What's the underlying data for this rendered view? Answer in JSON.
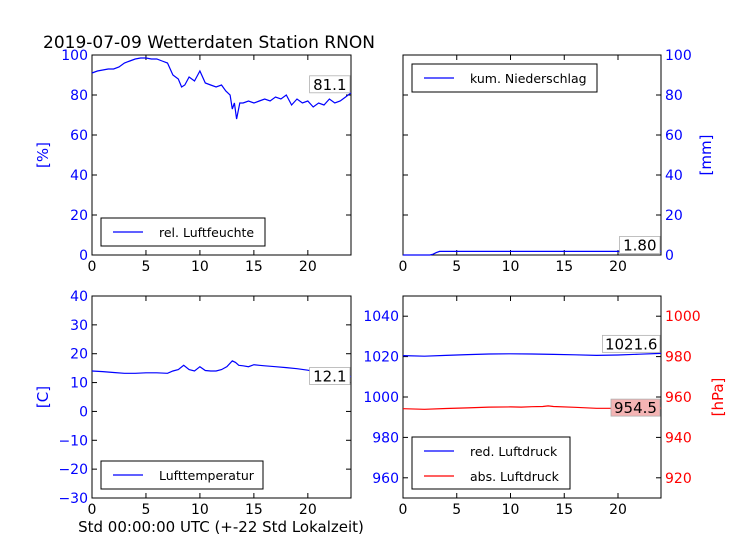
{
  "title": "2019-07-09 Wetterdaten Station RNON",
  "xlabel": "Std 00:00:00 UTC (+-22 Std Lokalzeit)",
  "colors": {
    "blue": "#0000ff",
    "red": "#ff0000",
    "pressure_box": "#f4b4b4"
  },
  "chart_data": [
    {
      "type": "line",
      "panel": "top-left",
      "ylabel": "[%]",
      "ylim": [
        0,
        100
      ],
      "xlim": [
        0,
        24
      ],
      "xticks": [
        0,
        5,
        10,
        15,
        20
      ],
      "yticks": [
        0,
        20,
        40,
        60,
        80,
        100
      ],
      "legend_position": "lower-left",
      "last_value_label": "81.1",
      "series": [
        {
          "name": "rel. Luftfeuchte",
          "color": "#0000ff",
          "x": [
            0,
            0.5,
            1,
            1.5,
            2,
            2.5,
            3,
            3.5,
            4,
            4.5,
            5,
            5.5,
            6,
            6.5,
            7,
            7.5,
            8,
            8.3,
            8.6,
            9,
            9.5,
            10,
            10.5,
            11,
            11.5,
            12,
            12.4,
            12.8,
            13.0,
            13.2,
            13.4,
            13.7,
            14,
            14.5,
            15,
            15.5,
            16,
            16.5,
            17,
            17.5,
            18,
            18.5,
            19,
            19.5,
            20,
            20.5,
            21,
            21.5,
            22,
            22.5,
            23,
            23.5,
            24
          ],
          "y": [
            91,
            92,
            92.5,
            93,
            93,
            94,
            96,
            97,
            98,
            98.5,
            98.5,
            98,
            98,
            97,
            96,
            90,
            88,
            84,
            85,
            89,
            87,
            92,
            86,
            85,
            84,
            85,
            82,
            80,
            73,
            76,
            68,
            76,
            76,
            77,
            76,
            77,
            78,
            77,
            79,
            78,
            80,
            75,
            78,
            76,
            77,
            74,
            76,
            75,
            78,
            76,
            77,
            79,
            81.1
          ]
        }
      ]
    },
    {
      "type": "line",
      "panel": "top-right",
      "ylabel": "[mm]",
      "ylim": [
        0,
        100
      ],
      "xlim": [
        0,
        24
      ],
      "xticks": [
        0,
        5,
        10,
        15,
        20
      ],
      "yticks": [
        0,
        20,
        40,
        60,
        80,
        100
      ],
      "legend_position": "upper-left",
      "last_value_label": "1.80",
      "series": [
        {
          "name": "kum. Niederschlag",
          "color": "#0000ff",
          "x": [
            0,
            2.5,
            2.8,
            3.1,
            3.4,
            24
          ],
          "y": [
            0,
            0,
            0.4,
            1.2,
            1.8,
            1.8
          ]
        }
      ]
    },
    {
      "type": "line",
      "panel": "bottom-left",
      "ylabel": "[C]",
      "ylim": [
        -30,
        40
      ],
      "xlim": [
        0,
        24
      ],
      "xticks": [
        0,
        5,
        10,
        15,
        20
      ],
      "yticks": [
        -30,
        -20,
        -10,
        0,
        10,
        20,
        30,
        40
      ],
      "legend_position": "lower-left",
      "last_value_label": "12.1",
      "series": [
        {
          "name": "Lufttemperatur",
          "color": "#0000ff",
          "x": [
            0,
            1,
            2,
            3,
            4,
            5,
            6,
            7,
            7.5,
            8,
            8.5,
            9,
            9.5,
            10,
            10.5,
            11,
            11.5,
            12,
            12.5,
            13,
            13.3,
            13.6,
            14,
            14.5,
            15,
            15.5,
            16,
            17,
            18,
            19,
            20,
            21,
            22,
            23,
            24
          ],
          "y": [
            14,
            13.8,
            13.5,
            13.2,
            13.2,
            13.4,
            13.4,
            13.2,
            14,
            14.5,
            16,
            14.5,
            14,
            15.5,
            14.2,
            14,
            14,
            14.5,
            15.5,
            17.5,
            17,
            16,
            15.8,
            15.5,
            16.2,
            16,
            15.8,
            15.5,
            15.2,
            14.8,
            14.3,
            13.5,
            13,
            12.5,
            12.1
          ]
        }
      ]
    },
    {
      "type": "line",
      "panel": "bottom-right",
      "ylabel": "[hPa]",
      "xlim": [
        0,
        24
      ],
      "xticks": [
        0,
        5,
        10,
        15,
        20
      ],
      "ylim_left": [
        950,
        1050
      ],
      "yticks_left": [
        960,
        980,
        1000,
        1020,
        1040
      ],
      "ylim_right": [
        910,
        1010
      ],
      "yticks_right": [
        920,
        940,
        960,
        980,
        1000
      ],
      "legend_position": "lower-left",
      "last_value_labels": [
        "1021.6",
        "954.5"
      ],
      "series": [
        {
          "name": "red. Luftdruck",
          "color": "#0000ff",
          "axis": "left",
          "x": [
            0,
            2,
            4,
            6,
            8,
            10,
            12,
            14,
            16,
            18,
            20,
            22,
            24
          ],
          "y": [
            1020.5,
            1020.2,
            1020.6,
            1021.0,
            1021.3,
            1021.4,
            1021.3,
            1021.1,
            1020.9,
            1020.6,
            1020.8,
            1021.2,
            1021.6
          ]
        },
        {
          "name": "abs. Luftdruck",
          "color": "#ff0000",
          "axis": "right",
          "x": [
            0,
            2,
            4,
            6,
            8,
            10,
            11,
            12,
            13,
            13.5,
            14,
            16,
            18,
            20,
            22,
            24
          ],
          "y": [
            954.2,
            953.9,
            954.3,
            954.6,
            955.0,
            955.1,
            955.0,
            955.2,
            955.3,
            955.6,
            955.3,
            954.9,
            954.4,
            954.4,
            954.5,
            954.5
          ]
        }
      ]
    }
  ]
}
